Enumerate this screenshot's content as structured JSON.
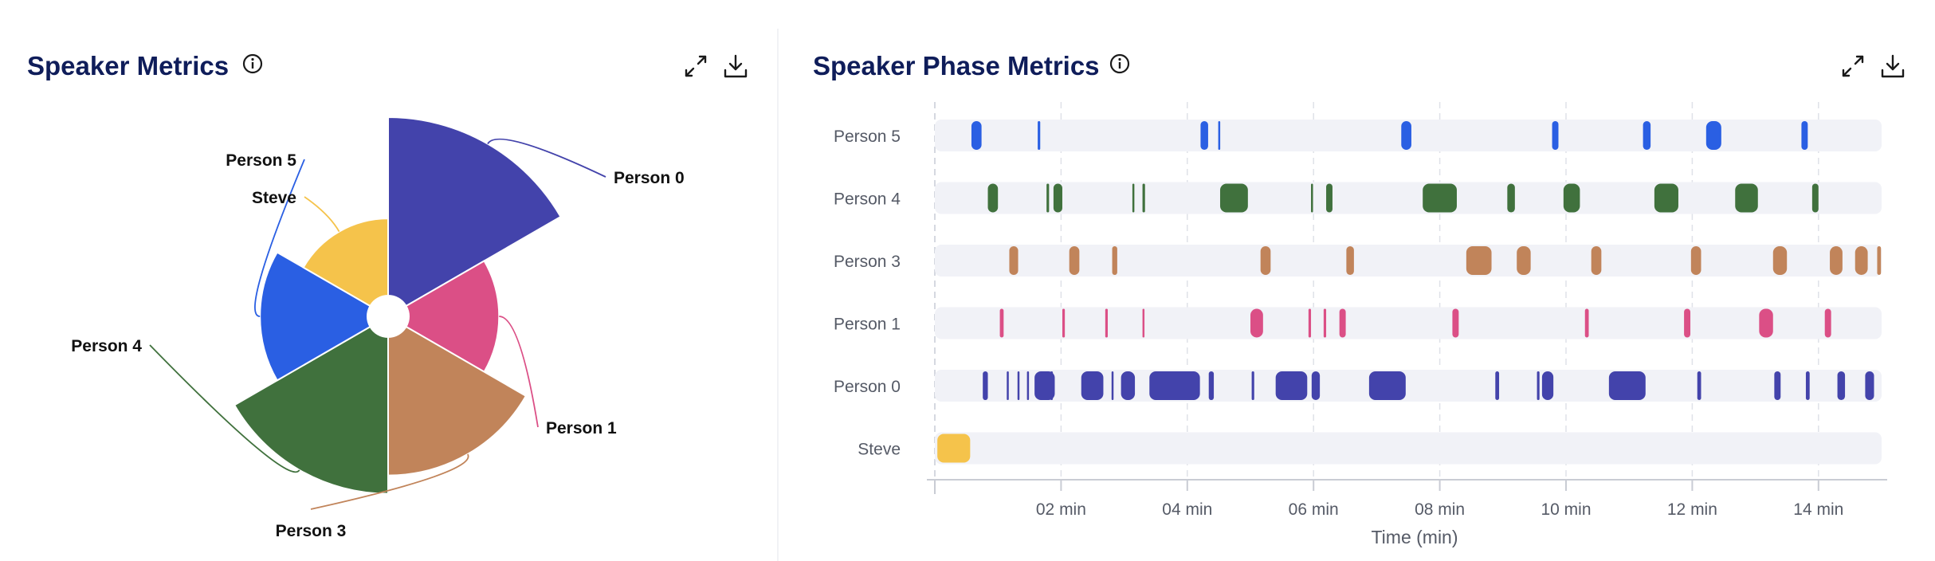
{
  "left_panel": {
    "title": "Speaker Metrics",
    "icons": {
      "info": "info-icon",
      "expand": "expand-icon",
      "download": "download-icon"
    }
  },
  "right_panel": {
    "title": "Speaker Phase Metrics",
    "icons": {
      "info": "info-icon",
      "expand": "expand-icon",
      "download": "download-icon"
    }
  },
  "chart_data": [
    {
      "type": "pie",
      "variant": "nightingale-rose",
      "title": "Speaker Metrics",
      "slices": [
        {
          "name": "Person 0",
          "value": 29.0,
          "color": "#4343ab"
        },
        {
          "name": "Person 1",
          "value": 9.0,
          "color": "#db4f86"
        },
        {
          "name": "Person 3",
          "value": 18.5,
          "color": "#c1845a"
        },
        {
          "name": "Person 4",
          "value": 23.0,
          "color": "#40713d"
        },
        {
          "name": "Person 5",
          "value": 12.0,
          "color": "#2a5fe3"
        },
        {
          "name": "Steve",
          "value": 7.0,
          "color": "#f5c34b"
        }
      ]
    },
    {
      "type": "timeline",
      "title": "Speaker Phase Metrics",
      "xlabel": "Time (min)",
      "xlim": [
        0,
        15
      ],
      "xticks": [
        {
          "value": 2,
          "label": "02 min"
        },
        {
          "value": 4,
          "label": "04 min"
        },
        {
          "value": 6,
          "label": "06 min"
        },
        {
          "value": 8,
          "label": "08 min"
        },
        {
          "value": 10,
          "label": "10 min"
        },
        {
          "value": 12,
          "label": "12 min"
        },
        {
          "value": 14,
          "label": "14 min"
        }
      ],
      "grid": true,
      "rows": [
        {
          "name": "Person 5",
          "color": "#2a5fe3",
          "segments": [
            [
              0.58,
              0.74
            ],
            [
              1.63,
              1.67
            ],
            [
              4.21,
              4.33
            ],
            [
              4.49,
              4.51
            ],
            [
              7.39,
              7.55
            ],
            [
              9.78,
              9.88
            ],
            [
              11.22,
              11.34
            ],
            [
              12.22,
              12.46
            ],
            [
              13.73,
              13.83
            ]
          ]
        },
        {
          "name": "Person 4",
          "color": "#40713d",
          "segments": [
            [
              0.84,
              1.0
            ],
            [
              1.77,
              1.81
            ],
            [
              1.88,
              2.02
            ],
            [
              3.13,
              3.16
            ],
            [
              3.29,
              3.33
            ],
            [
              4.52,
              4.96
            ],
            [
              5.96,
              5.98
            ],
            [
              6.2,
              6.3
            ],
            [
              7.73,
              8.27
            ],
            [
              9.07,
              9.19
            ],
            [
              9.96,
              10.22
            ],
            [
              11.4,
              11.78
            ],
            [
              12.68,
              13.04
            ],
            [
              13.9,
              14.0
            ]
          ]
        },
        {
          "name": "Person 3",
          "color": "#c1845a",
          "segments": [
            [
              1.18,
              1.32
            ],
            [
              2.13,
              2.29
            ],
            [
              2.81,
              2.89
            ],
            [
              5.16,
              5.32
            ],
            [
              6.52,
              6.64
            ],
            [
              8.42,
              8.82
            ],
            [
              9.22,
              9.44
            ],
            [
              10.4,
              10.56
            ],
            [
              11.98,
              12.14
            ],
            [
              13.28,
              13.5
            ],
            [
              14.18,
              14.38
            ],
            [
              14.58,
              14.78
            ],
            [
              14.93,
              14.99
            ]
          ]
        },
        {
          "name": "Person 1",
          "color": "#db4f86",
          "segments": [
            [
              1.03,
              1.09
            ],
            [
              2.02,
              2.06
            ],
            [
              2.7,
              2.74
            ],
            [
              3.29,
              3.31
            ],
            [
              5.0,
              5.2
            ],
            [
              5.92,
              5.96
            ],
            [
              6.16,
              6.2
            ],
            [
              6.41,
              6.51
            ],
            [
              8.2,
              8.3
            ],
            [
              10.3,
              10.36
            ],
            [
              11.87,
              11.97
            ],
            [
              13.06,
              13.28
            ],
            [
              14.1,
              14.2
            ]
          ]
        },
        {
          "name": "Person 0",
          "color": "#4343ab",
          "segments": [
            [
              0.76,
              0.84
            ],
            [
              1.14,
              1.16
            ],
            [
              1.31,
              1.34
            ],
            [
              1.46,
              1.48
            ],
            [
              1.58,
              1.9
            ],
            [
              1.83,
              1.87
            ],
            [
              2.32,
              2.67
            ],
            [
              2.8,
              2.82
            ],
            [
              2.95,
              3.17
            ],
            [
              3.4,
              4.2
            ],
            [
              4.34,
              4.42
            ],
            [
              5.02,
              5.06
            ],
            [
              5.4,
              5.9
            ],
            [
              5.97,
              6.1
            ],
            [
              6.88,
              7.46
            ],
            [
              8.88,
              8.94
            ],
            [
              9.54,
              9.58
            ],
            [
              9.62,
              9.8
            ],
            [
              10.68,
              11.26
            ],
            [
              12.08,
              12.14
            ],
            [
              13.3,
              13.4
            ],
            [
              13.8,
              13.86
            ],
            [
              14.3,
              14.42
            ],
            [
              14.74,
              14.88
            ]
          ]
        },
        {
          "name": "Steve",
          "color": "#f5c34b",
          "segments": [
            [
              0.04,
              0.56
            ]
          ]
        }
      ]
    }
  ]
}
